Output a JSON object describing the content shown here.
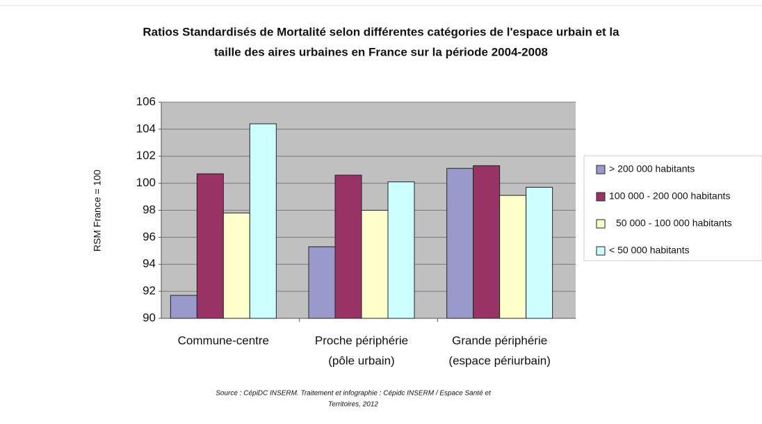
{
  "chart_data": {
    "type": "bar",
    "title": [
      "Ratios Standardisés de Mortalité selon différentes catégories de l'espace urbain et la",
      "taille des aires urbaines en France sur la période 2004-2008"
    ],
    "ylabel": "RSM France = 100",
    "categories": [
      [
        "Commune-centre"
      ],
      [
        "Proche périphérie",
        "(pôle urbain)"
      ],
      [
        "Grande périphérie",
        "(espace périurbain)"
      ]
    ],
    "series": [
      {
        "name": "> 200 000 habitants",
        "color": "#9999cc",
        "values": [
          91.7,
          95.3,
          101.1
        ]
      },
      {
        "name": "100 000 - 200 000 habitants",
        "color": "#993366",
        "values": [
          100.7,
          100.6,
          101.3
        ]
      },
      {
        "name": "50 000 - 100 000 habitants",
        "color": "#ffffcc",
        "values": [
          97.8,
          98.0,
          99.1
        ]
      },
      {
        "name": "< 50 000 habitants",
        "color": "#ccffff",
        "values": [
          104.4,
          100.1,
          99.7
        ]
      }
    ],
    "ylim": [
      90,
      106
    ],
    "yticks": [
      90,
      92,
      94,
      96,
      98,
      100,
      102,
      104,
      106
    ],
    "grid": true,
    "legend": "right",
    "source": [
      "Source : CépiDC INSERM. Traitement et infographie : Cépidc INSERM / Espace Santé et",
      "Territoires, 2012"
    ]
  }
}
